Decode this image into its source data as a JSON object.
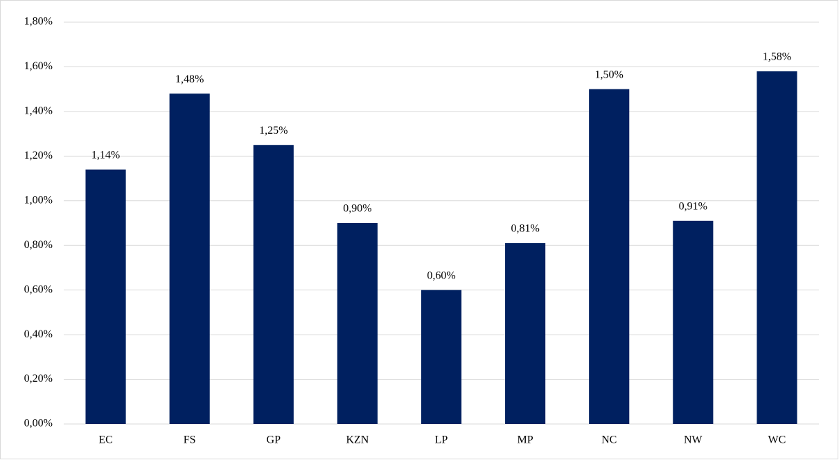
{
  "chart_data": {
    "type": "bar",
    "categories": [
      "EC",
      "FS",
      "GP",
      "KZN",
      "LP",
      "MP",
      "NC",
      "NW",
      "WC"
    ],
    "values": [
      1.14,
      1.48,
      1.25,
      0.9,
      0.6,
      0.81,
      1.5,
      0.91,
      1.58
    ],
    "value_labels": [
      "1,14%",
      "1,48%",
      "1,25%",
      "0,90%",
      "0,60%",
      "0,81%",
      "1,50%",
      "0,91%",
      "1,58%"
    ],
    "color": "#002060",
    "ylim": [
      0,
      1.8
    ],
    "yticks": [
      {
        "value": 0,
        "label": "0,00%"
      },
      {
        "value": 0.2,
        "label": "0,20%"
      },
      {
        "value": 0.4,
        "label": "0,40%"
      },
      {
        "value": 0.6,
        "label": "0,60%"
      },
      {
        "value": 0.8,
        "label": "0,80%"
      },
      {
        "value": 1.0,
        "label": "1,00%"
      },
      {
        "value": 1.2,
        "label": "1,20%"
      },
      {
        "value": 1.4,
        "label": "1,40%"
      },
      {
        "value": 1.6,
        "label": "1,60%"
      },
      {
        "value": 1.8,
        "label": "1,80%"
      }
    ],
    "grid": true
  }
}
